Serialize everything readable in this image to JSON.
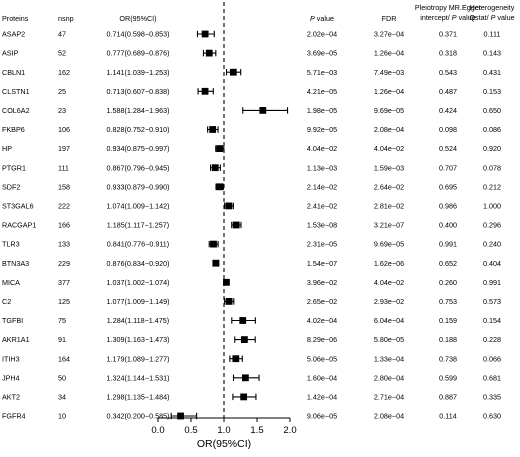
{
  "headers": {
    "proteins": "Proteins",
    "nsnp": "nsnp",
    "or": "OR(95%CI)",
    "pvalue_p": "P",
    "pvalue_rest": " value",
    "fdr": "FDR",
    "pleio_line1": "Pleiotropy MR.Egger",
    "pleio_line2_a": "intercept/ ",
    "pleio_line2_p": "P",
    "pleio_line2_b": " value",
    "het_line1": "Heterogeneity",
    "het_line2_a": "Qstat/ ",
    "het_line2_p": "P",
    "het_line2_b": " value"
  },
  "rows": [
    {
      "protein": "ASAP2",
      "nsnp": "47",
      "or_text": "0.714(0.598−0.853)",
      "pvalue": "2.02e−04",
      "fdr": "3.27e−04",
      "pleiotropy": "0.371",
      "heterogeneity": "0.111"
    },
    {
      "protein": "ASIP",
      "nsnp": "52",
      "or_text": "0.777(0.689−0.876)",
      "pvalue": "3.69e−05",
      "fdr": "1.26e−04",
      "pleiotropy": "0.318",
      "heterogeneity": "0.143"
    },
    {
      "protein": "CBLN1",
      "nsnp": "162",
      "or_text": "1.141(1.039−1.253)",
      "pvalue": "5.71e−03",
      "fdr": "7.49e−03",
      "pleiotropy": "0.543",
      "heterogeneity": "0.431"
    },
    {
      "protein": "CLSTN1",
      "nsnp": "25",
      "or_text": "0.713(0.607−0.838)",
      "pvalue": "4.21e−05",
      "fdr": "1.26e−04",
      "pleiotropy": "0.487",
      "heterogeneity": "0.153"
    },
    {
      "protein": "COL6A2",
      "nsnp": "23",
      "or_text": "1.588(1.284−1.963)",
      "pvalue": "1.98e−05",
      "fdr": "9.69e−05",
      "pleiotropy": "0.424",
      "heterogeneity": "0.650"
    },
    {
      "protein": "FKBP6",
      "nsnp": "106",
      "or_text": "0.828(0.752−0.910)",
      "pvalue": "9.92e−05",
      "fdr": "2.08e−04",
      "pleiotropy": "0.098",
      "heterogeneity": "0.086"
    },
    {
      "protein": "HP",
      "nsnp": "197",
      "or_text": "0.934(0.875−0.997)",
      "pvalue": "4.04e−02",
      "fdr": "4.04e−02",
      "pleiotropy": "0.524",
      "heterogeneity": "0.920"
    },
    {
      "protein": "PTGR1",
      "nsnp": "111",
      "or_text": "0.867(0.796−0.945)",
      "pvalue": "1.13e−03",
      "fdr": "1.59e−03",
      "pleiotropy": "0.707",
      "heterogeneity": "0.078"
    },
    {
      "protein": "SDF2",
      "nsnp": "158",
      "or_text": "0.933(0.879−0.990)",
      "pvalue": "2.14e−02",
      "fdr": "2.64e−02",
      "pleiotropy": "0.695",
      "heterogeneity": "0.212"
    },
    {
      "protein": "ST3GAL6",
      "nsnp": "222",
      "or_text": "1.074(1.009−1.142)",
      "pvalue": "2.41e−02",
      "fdr": "2.81e−02",
      "pleiotropy": "0.986",
      "heterogeneity": "1.000"
    },
    {
      "protein": "RACGAP1",
      "nsnp": "166",
      "or_text": "1.185(1.117−1.257)",
      "pvalue": "1.53e−08",
      "fdr": "3.21e−07",
      "pleiotropy": "0.400",
      "heterogeneity": "0.296"
    },
    {
      "protein": "TLR3",
      "nsnp": "133",
      "or_text": "0.841(0.776−0.911)",
      "pvalue": "2.31e−05",
      "fdr": "9.69e−05",
      "pleiotropy": "0.991",
      "heterogeneity": "0.240"
    },
    {
      "protein": "BTN3A3",
      "nsnp": "229",
      "or_text": "0.876(0.834−0.920)",
      "pvalue": "1.54e−07",
      "fdr": "1.62e−06",
      "pleiotropy": "0.652",
      "heterogeneity": "0.404"
    },
    {
      "protein": "MICA",
      "nsnp": "377",
      "or_text": "1.037(1.002−1.074)",
      "pvalue": "3.96e−02",
      "fdr": "4.04e−02",
      "pleiotropy": "0.260",
      "heterogeneity": "0.991"
    },
    {
      "protein": "C2",
      "nsnp": "125",
      "or_text": "1.077(1.009−1.149)",
      "pvalue": "2.65e−02",
      "fdr": "2.93e−02",
      "pleiotropy": "0.753",
      "heterogeneity": "0.573"
    },
    {
      "protein": "TGFBI",
      "nsnp": "75",
      "or_text": "1.284(1.118−1.475)",
      "pvalue": "4.02e−04",
      "fdr": "6.04e−04",
      "pleiotropy": "0.159",
      "heterogeneity": "0.154"
    },
    {
      "protein": "AKR1A1",
      "nsnp": "91",
      "or_text": "1.309(1.163−1.473)",
      "pvalue": "8.29e−06",
      "fdr": "5.80e−05",
      "pleiotropy": "0.188",
      "heterogeneity": "0.228"
    },
    {
      "protein": "ITIH3",
      "nsnp": "164",
      "or_text": "1.179(1.089−1.277)",
      "pvalue": "5.06e−05",
      "fdr": "1.33e−04",
      "pleiotropy": "0.738",
      "heterogeneity": "0.066"
    },
    {
      "protein": "JPH4",
      "nsnp": "50",
      "or_text": "1.324(1.144−1.531)",
      "pvalue": "1.60e−04",
      "fdr": "2.80e−04",
      "pleiotropy": "0.599",
      "heterogeneity": "0.681"
    },
    {
      "protein": "AKT2",
      "nsnp": "34",
      "or_text": "1.298(1.135−1.484)",
      "pvalue": "1.42e−04",
      "fdr": "2.71e−04",
      "pleiotropy": "0.887",
      "heterogeneity": "0.335"
    },
    {
      "protein": "FGFR4",
      "nsnp": "10",
      "or_text": "0.342(0.200−0.585)",
      "pvalue": "9.06e−05",
      "fdr": "2.08e−04",
      "pleiotropy": "0.114",
      "heterogeneity": "0.630"
    }
  ],
  "chart_data": {
    "type": "forest",
    "xlabel": "OR(95%CI)",
    "xlim": [
      0.0,
      2.0
    ],
    "xticks": [
      "0.0",
      "0.5",
      "1.0",
      "1.5",
      "2.0"
    ],
    "reference_line": 1.0,
    "categories": [
      "ASAP2",
      "ASIP",
      "CBLN1",
      "CLSTN1",
      "COL6A2",
      "FKBP6",
      "HP",
      "PTGR1",
      "SDF2",
      "ST3GAL6",
      "RACGAP1",
      "TLR3",
      "BTN3A3",
      "MICA",
      "C2",
      "TGFBI",
      "AKR1A1",
      "ITIH3",
      "JPH4",
      "AKT2",
      "FGFR4"
    ],
    "or": [
      0.714,
      0.777,
      1.141,
      0.713,
      1.588,
      0.828,
      0.934,
      0.867,
      0.933,
      1.074,
      1.185,
      0.841,
      0.876,
      1.037,
      1.077,
      1.284,
      1.309,
      1.179,
      1.324,
      1.298,
      0.342
    ],
    "lower": [
      0.598,
      0.689,
      1.039,
      0.607,
      1.284,
      0.752,
      0.875,
      0.796,
      0.879,
      1.009,
      1.117,
      0.776,
      0.834,
      1.002,
      1.009,
      1.118,
      1.163,
      1.089,
      1.144,
      1.135,
      0.2
    ],
    "upper": [
      0.853,
      0.876,
      1.253,
      0.838,
      1.963,
      0.91,
      0.997,
      0.945,
      0.99,
      1.142,
      1.257,
      0.911,
      0.92,
      1.074,
      1.149,
      1.475,
      1.473,
      1.277,
      1.531,
      1.484,
      0.585
    ]
  }
}
